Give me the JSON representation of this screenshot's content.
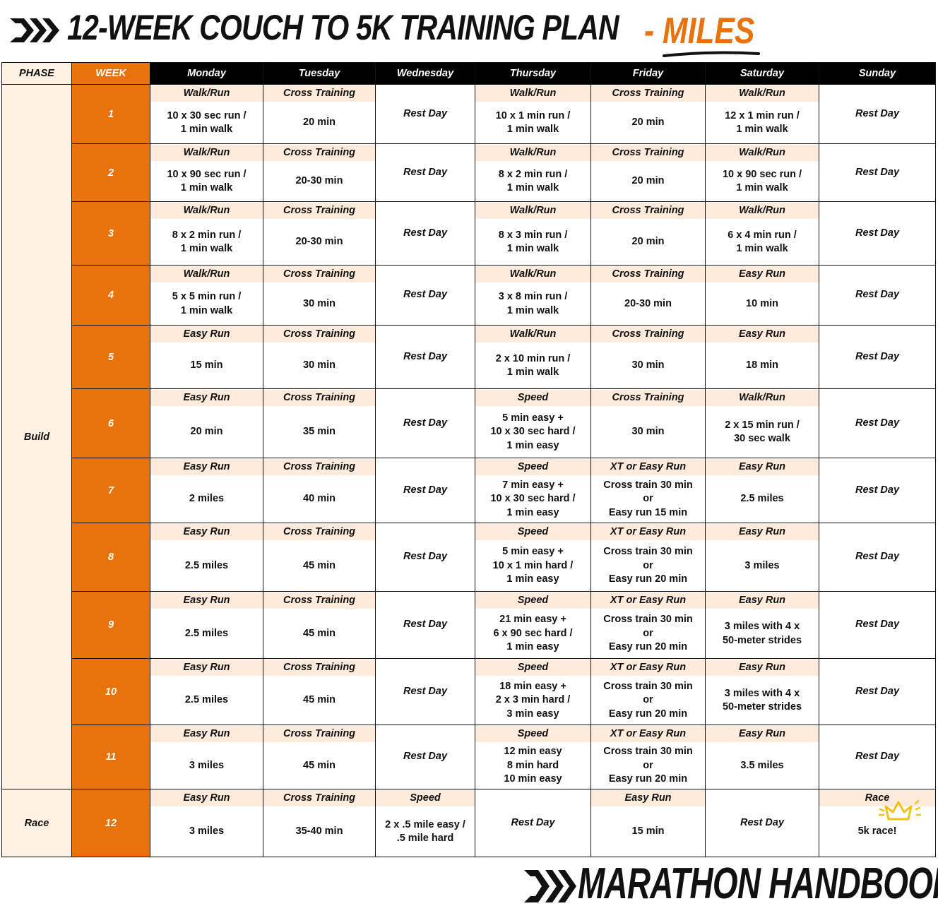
{
  "header": {
    "title": "12-WEEK COUCH TO 5K TRAINING PLAN",
    "suffix": "- MILES",
    "accent_color": "#E8720C"
  },
  "columns": {
    "phase": "PHASE",
    "week": "WEEK",
    "days": [
      "Monday",
      "Tuesday",
      "Wednesday",
      "Thursday",
      "Friday",
      "Saturday",
      "Sunday"
    ]
  },
  "phases": [
    "Build",
    "Race"
  ],
  "weeks": [
    {
      "week": "1",
      "days": [
        {
          "title": "Walk/Run",
          "value": "10 x 30 sec run /\n1 min walk"
        },
        {
          "title": "Cross Training",
          "value": "20 min"
        },
        {
          "title": "",
          "value": "Rest Day"
        },
        {
          "title": "Walk/Run",
          "value": "10 x 1 min run /\n1 min walk"
        },
        {
          "title": "Cross Training",
          "value": "20 min"
        },
        {
          "title": "Walk/Run",
          "value": "12 x 1 min run /\n1 min walk"
        },
        {
          "title": "",
          "value": "Rest Day"
        }
      ]
    },
    {
      "week": "2",
      "days": [
        {
          "title": "Walk/Run",
          "value": "10 x 90 sec run /\n1 min walk"
        },
        {
          "title": "Cross Training",
          "value": "20-30 min"
        },
        {
          "title": "",
          "value": "Rest Day"
        },
        {
          "title": "Walk/Run",
          "value": "8 x 2 min run /\n1 min walk"
        },
        {
          "title": "Cross Training",
          "value": "20 min"
        },
        {
          "title": "Walk/Run",
          "value": "10 x 90 sec run /\n1 min walk"
        },
        {
          "title": "",
          "value": "Rest Day"
        }
      ]
    },
    {
      "week": "3",
      "days": [
        {
          "title": "Walk/Run",
          "value": "8 x 2 min run /\n1 min walk"
        },
        {
          "title": "Cross Training",
          "value": "20-30 min"
        },
        {
          "title": "",
          "value": "Rest Day"
        },
        {
          "title": "Walk/Run",
          "value": "8 x 3 min run /\n1 min walk"
        },
        {
          "title": "Cross Training",
          "value": "20 min"
        },
        {
          "title": "Walk/Run",
          "value": "6 x 4 min run /\n1 min walk"
        },
        {
          "title": "",
          "value": "Rest Day"
        }
      ]
    },
    {
      "week": "4",
      "days": [
        {
          "title": "Walk/Run",
          "value": "5 x 5 min run /\n1 min walk"
        },
        {
          "title": "Cross Training",
          "value": "30 min"
        },
        {
          "title": "",
          "value": "Rest Day"
        },
        {
          "title": "Walk/Run",
          "value": "3 x 8 min run /\n1 min walk"
        },
        {
          "title": "Cross Training",
          "value": "20-30 min"
        },
        {
          "title": "Easy Run",
          "value": "10 min"
        },
        {
          "title": "",
          "value": "Rest Day"
        }
      ]
    },
    {
      "week": "5",
      "days": [
        {
          "title": "Easy Run",
          "value": "15 min"
        },
        {
          "title": "Cross Training",
          "value": "30 min"
        },
        {
          "title": "",
          "value": "Rest Day"
        },
        {
          "title": "Walk/Run",
          "value": "2 x 10 min run /\n1 min walk"
        },
        {
          "title": "Cross Training",
          "value": "30 min"
        },
        {
          "title": "Easy Run",
          "value": "18 min"
        },
        {
          "title": "",
          "value": "Rest Day"
        }
      ]
    },
    {
      "week": "6",
      "days": [
        {
          "title": "Easy Run",
          "value": "20 min"
        },
        {
          "title": "Cross Training",
          "value": "35 min"
        },
        {
          "title": "",
          "value": "Rest Day"
        },
        {
          "title": "Speed",
          "value": "5 min easy  +\n10 x 30 sec hard /\n1 min easy"
        },
        {
          "title": "Cross Training",
          "value": "30 min"
        },
        {
          "title": "Walk/Run",
          "value": "2 x 15 min run /\n30 sec walk"
        },
        {
          "title": "",
          "value": "Rest Day"
        }
      ]
    },
    {
      "week": "7",
      "days": [
        {
          "title": "Easy Run",
          "value": "2 miles"
        },
        {
          "title": "Cross Training",
          "value": "40 min"
        },
        {
          "title": "",
          "value": "Rest Day"
        },
        {
          "title": "Speed",
          "value": "7 min easy  +\n10 x 30 sec hard /\n1 min easy"
        },
        {
          "title": "XT or Easy Run",
          "value": "Cross train 30 min\nor\nEasy run 15 min"
        },
        {
          "title": "Easy Run",
          "value": "2.5 miles"
        },
        {
          "title": "",
          "value": "Rest Day"
        }
      ]
    },
    {
      "week": "8",
      "days": [
        {
          "title": "Easy Run",
          "value": "2.5 miles"
        },
        {
          "title": "Cross Training",
          "value": "45 min"
        },
        {
          "title": "",
          "value": "Rest Day"
        },
        {
          "title": "Speed",
          "value": "5 min easy  +\n10 x 1 min hard /\n1 min easy"
        },
        {
          "title": "XT or Easy Run",
          "value": "Cross train 30 min\nor\nEasy run 20 min"
        },
        {
          "title": "Easy Run",
          "value": "3 miles"
        },
        {
          "title": "",
          "value": "Rest Day"
        }
      ]
    },
    {
      "week": "9",
      "days": [
        {
          "title": "Easy Run",
          "value": "2.5 miles"
        },
        {
          "title": "Cross Training",
          "value": "45 min"
        },
        {
          "title": "",
          "value": "Rest Day"
        },
        {
          "title": "Speed",
          "value": "21 min easy  +\n6 x 90 sec hard /\n1 min easy"
        },
        {
          "title": "XT or Easy Run",
          "value": "Cross train 30 min\nor\nEasy run 20 min"
        },
        {
          "title": "Easy Run",
          "value": "3 miles with 4 x\n50-meter strides"
        },
        {
          "title": "",
          "value": "Rest Day"
        }
      ]
    },
    {
      "week": "10",
      "days": [
        {
          "title": "Easy Run",
          "value": "2.5 miles"
        },
        {
          "title": "Cross Training",
          "value": "45 min"
        },
        {
          "title": "",
          "value": "Rest Day"
        },
        {
          "title": "Speed",
          "value": "18 min easy  +\n2 x 3 min hard /\n3 min easy"
        },
        {
          "title": "XT or Easy Run",
          "value": "Cross train 30 min\nor\nEasy run 20 min"
        },
        {
          "title": "Easy Run",
          "value": "3 miles with 4 x\n50-meter strides"
        },
        {
          "title": "",
          "value": "Rest Day"
        }
      ]
    },
    {
      "week": "11",
      "days": [
        {
          "title": "Easy Run",
          "value": "3 miles"
        },
        {
          "title": "Cross Training",
          "value": "45 min"
        },
        {
          "title": "",
          "value": "Rest Day"
        },
        {
          "title": "Speed",
          "value": "12 min easy\n8 min hard\n10 min easy"
        },
        {
          "title": "XT or Easy Run",
          "value": "Cross train 30 min\nor\nEasy run 20 min"
        },
        {
          "title": "Easy Run",
          "value": "3.5 miles"
        },
        {
          "title": "",
          "value": "Rest Day"
        }
      ]
    },
    {
      "week": "12",
      "days": [
        {
          "title": "Easy Run",
          "value": "3 miles"
        },
        {
          "title": "Cross Training",
          "value": "35-40 min"
        },
        {
          "title": "Speed",
          "value": "2 x .5 mile easy /\n.5 mile hard"
        },
        {
          "title": "",
          "value": "Rest Day"
        },
        {
          "title": "Easy Run",
          "value": "15 min"
        },
        {
          "title": "",
          "value": "Rest Day"
        },
        {
          "title": "Race",
          "value": "5k race!"
        }
      ]
    }
  ],
  "footer": {
    "brand": "MARATHON HANDBOOK"
  },
  "icons": {
    "logo": "chevrons-logo-icon",
    "crown": "crown-icon"
  }
}
